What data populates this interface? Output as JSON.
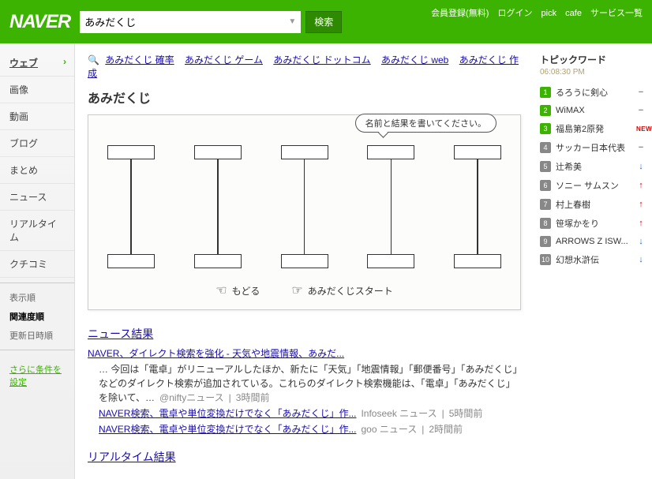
{
  "header": {
    "logo": "NAVER",
    "query": "あみだくじ",
    "search_btn": "検索",
    "links": [
      "会員登録(無料)",
      "ログイン",
      "pick",
      "cafe",
      "サービス一覧"
    ]
  },
  "leftnav": {
    "items": [
      "ウェブ",
      "画像",
      "動画",
      "ブログ",
      "まとめ",
      "ニュース",
      "リアルタイム",
      "クチコミ"
    ],
    "sort_label": "表示順",
    "sorts": [
      "関連度順",
      "更新日時順"
    ],
    "setlink": "さらに条件を設定"
  },
  "related": {
    "items": [
      "あみだくじ 確率",
      "あみだくじ ゲーム",
      "あみだくじ ドットコム",
      "あみだくじ web",
      "あみだくじ 作成"
    ]
  },
  "title": "あみだくじ",
  "amida": {
    "bubble": "名前と結果を書いてください。",
    "cols": 5,
    "back": "もどる",
    "start": "あみだくじスタート"
  },
  "news": {
    "heading": "ニュース結果",
    "main_link": "NAVER、ダイレクト検索を強化 - 天気や地震情報、あみだ...",
    "snippet": "… 今回は「電卓」がリニューアルしたほか、新たに「天気」「地震情報」「郵便番号」「あみだくじ」などのダイレクト検索が追加されている。これらのダイレクト検索機能は、「電卓」「あみだくじ」を除いて、…",
    "main_src": "@niftyニュース",
    "main_time": "3時間前",
    "subs": [
      {
        "t": "NAVER検索、電卓や単位変換だけでなく「あみだくじ」作...",
        "s": "Infoseek ニュース",
        "tm": "5時間前"
      },
      {
        "t": "NAVER検索、電卓や単位変換だけでなく「あみだくじ」作...",
        "s": "goo ニュース",
        "tm": "2時間前"
      }
    ]
  },
  "realtime": {
    "heading": "リアルタイム結果"
  },
  "rcol": {
    "heading": "トピックワード",
    "time": "06:08:30 PM",
    "topics": [
      {
        "n": 1,
        "g": true,
        "t": "るろうに剣心",
        "tr": "eq"
      },
      {
        "n": 2,
        "g": true,
        "t": "WiMAX",
        "tr": "eq"
      },
      {
        "n": 3,
        "g": true,
        "t": "福島第2原発",
        "tr": "new"
      },
      {
        "n": 4,
        "g": false,
        "t": "サッカー日本代表",
        "tr": "eq"
      },
      {
        "n": 5,
        "g": false,
        "t": "辻希美",
        "tr": "dn"
      },
      {
        "n": 6,
        "g": false,
        "t": "ソニー サムスン",
        "tr": "up"
      },
      {
        "n": 7,
        "g": false,
        "t": "村上春樹",
        "tr": "up"
      },
      {
        "n": 8,
        "g": false,
        "t": "笹塚かをり",
        "tr": "up"
      },
      {
        "n": 9,
        "g": false,
        "t": "ARROWS Z ISW...",
        "tr": "dn"
      },
      {
        "n": 10,
        "g": false,
        "t": "幻想水滸伝",
        "tr": "dn"
      }
    ]
  }
}
